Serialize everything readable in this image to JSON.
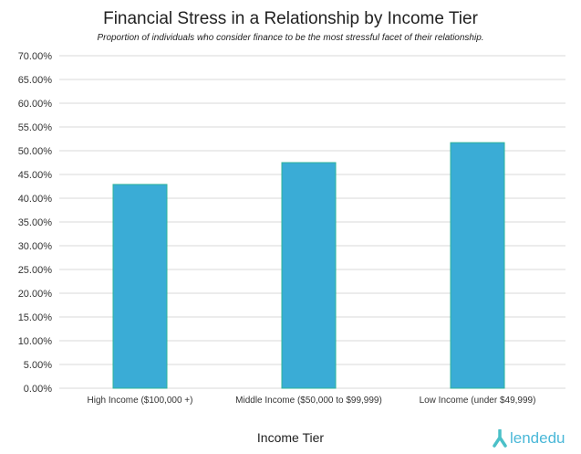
{
  "chart_data": {
    "type": "bar",
    "title": "Financial Stress in a Relationship by Income Tier",
    "subtitle": "Proportion of individuals who consider finance to be the most stressful facet of their relationship.",
    "xlabel": "Income Tier",
    "ylabel": "",
    "categories": [
      "High Income ($100,000 +)",
      "Middle Income ($50,000 to $99,999)",
      "Low Income (under $49,999)"
    ],
    "values": [
      42.9,
      47.5,
      51.7
    ],
    "ylim": [
      0,
      70
    ],
    "ytick_step": 5,
    "ytick_format": "percent-2dp",
    "grid": true,
    "bar_color": "#3aacd6",
    "bar_edge_color": "#2db39a",
    "grid_color": "#d9d9d9"
  },
  "logo": {
    "text": "lendedu"
  }
}
